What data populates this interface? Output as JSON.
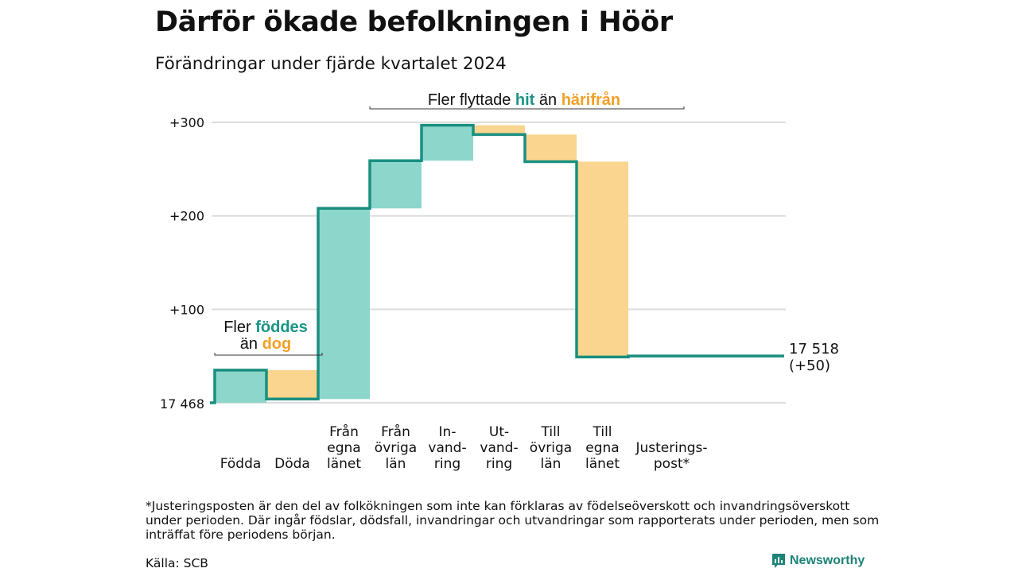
{
  "title": "Därför ökade befolkningen i Höör",
  "subtitle": "Förändringar under fjärde kvartalet 2024",
  "footnote": "*Justeringsposten är den del av folkökningen som inte kan förklaras av födelseöverskott och invandringsöverskott under perioden. Där ingår födslar, dödsfall, invandringar och utvandringar som rapporterats under perioden, men som inträffat före periodens början.",
  "source": "Källa: SCB",
  "brand": "Newsworthy",
  "colors": {
    "increase": "#8dd6cc",
    "decrease": "#f9d58f",
    "line": "#1a8f80",
    "annotation_hit": "#1a9585",
    "annotation_harifran": "#f2a027",
    "grid": "#dddddd",
    "brand": "#1c8377"
  },
  "chart_data": {
    "type": "waterfall",
    "start_value": 17468,
    "start_label": "17 468",
    "end_label": "17 518",
    "end_change_label": "(+50)",
    "y_ticks": [
      {
        "value": 100,
        "label": "+100"
      },
      {
        "value": 200,
        "label": "+200"
      },
      {
        "value": 300,
        "label": "+300"
      }
    ],
    "ylim": [
      0,
      300
    ],
    "grid": true,
    "steps": [
      {
        "label": [
          "Födda"
        ],
        "from": 0,
        "to": 35
      },
      {
        "label": [
          "Döda"
        ],
        "from": 35,
        "to": 4
      },
      {
        "label": [
          "Från",
          "egna",
          "länet"
        ],
        "from": 4,
        "to": 208
      },
      {
        "label": [
          "Från",
          "övriga",
          "län"
        ],
        "from": 208,
        "to": 259
      },
      {
        "label": [
          "In-",
          "vand-",
          "ring"
        ],
        "from": 259,
        "to": 297
      },
      {
        "label": [
          "Ut-",
          "vand-",
          "ring"
        ],
        "from": 297,
        "to": 287
      },
      {
        "label": [
          "Till",
          "övriga",
          "län"
        ],
        "from": 287,
        "to": 258
      },
      {
        "label": [
          "Till",
          "egna",
          "länet"
        ],
        "from": 258,
        "to": 49
      },
      {
        "label": [
          "Justerings-",
          "post*"
        ],
        "from": 49,
        "to": 50
      }
    ],
    "annotations": {
      "migration": {
        "parts": [
          "Fler flyttade ",
          "hit",
          " än ",
          "härifrån"
        ]
      },
      "natural": {
        "line1": [
          "Fler ",
          "föddes"
        ],
        "line2": [
          "än ",
          "dog"
        ]
      }
    }
  }
}
